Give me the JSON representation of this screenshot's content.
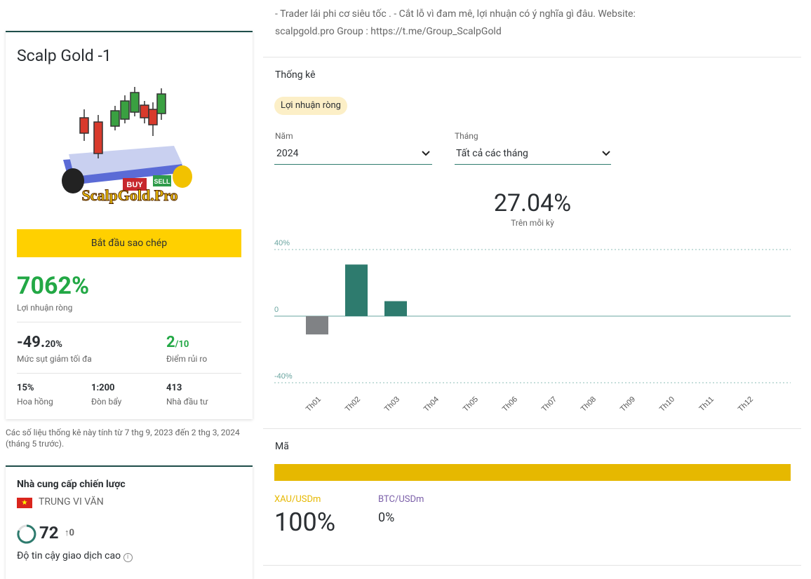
{
  "description": "- Trader lái phi cơ siêu tốc . - Cắt lỗ vì đam mê, lợi nhuận có ý nghĩa gì đâu. Website: scalpgold.pro Group : https://t.me/Group_ScalpGold",
  "profile": {
    "name": "Scalp Gold -1",
    "logo_text": "ScalpGold.Pro",
    "logo_buy": "BUY",
    "logo_sell": "SELL",
    "copy_button": "Bắt đầu sao chép",
    "net_profit": "7062%",
    "net_profit_label": "Lợi nhuận ròng",
    "drawdown": {
      "main": "-49.",
      "fraction": "20%",
      "label": "Mức sụt giảm tối đa"
    },
    "risk": {
      "main": "2",
      "fraction": "/10",
      "label": "Điểm rủi ro"
    },
    "stats": [
      {
        "value": "15%",
        "label": "Hoa hồng"
      },
      {
        "value": "1:200",
        "label": "Đòn bẩy"
      },
      {
        "value": "413",
        "label": "Nhà đầu tư"
      }
    ]
  },
  "footnote": "Các số liệu thống kê này tính từ 7 thg 9, 2023 đến 2 thg 3, 2024 (tháng 5 trước).",
  "provider": {
    "title": "Nhà cung cấp chiến lược",
    "name": "TRUNG VI VĂN",
    "score": "72",
    "score_change": "0",
    "trust_label": "Độ tin cậy giao dịch cao"
  },
  "statistics": {
    "title": "Thống kê",
    "tab": "Lợi nhuận ròng",
    "year_label": "Năm",
    "year": "2024",
    "month_label": "Tháng",
    "month": "Tất cả các tháng",
    "total": "27.04%",
    "total_label": "Trên mỗi kỳ"
  },
  "chart_data": {
    "type": "bar",
    "categories": [
      "Th01",
      "Th02",
      "Th03",
      "Th04",
      "Th05",
      "Th06",
      "Th07",
      "Th08",
      "Th09",
      "Th10",
      "Th11",
      "Th12"
    ],
    "values": [
      -11,
      31,
      9,
      null,
      null,
      null,
      null,
      null,
      null,
      null,
      null,
      null
    ],
    "color": "#2e7b6e",
    "negative_color": "#808285",
    "ylim": [
      -40,
      40
    ],
    "yticks": [
      {
        "value": -40,
        "label": "-40%"
      },
      0,
      {
        "value": 40,
        "label": "40%"
      }
    ],
    "grid": true
  },
  "symbols": {
    "title": "Mã",
    "items": [
      {
        "name": "XAU/USDm",
        "share": "100%",
        "color": "#e6b800"
      },
      {
        "name": "BTC/USDm",
        "share": "0%",
        "color": "#7a5ea8"
      }
    ]
  }
}
